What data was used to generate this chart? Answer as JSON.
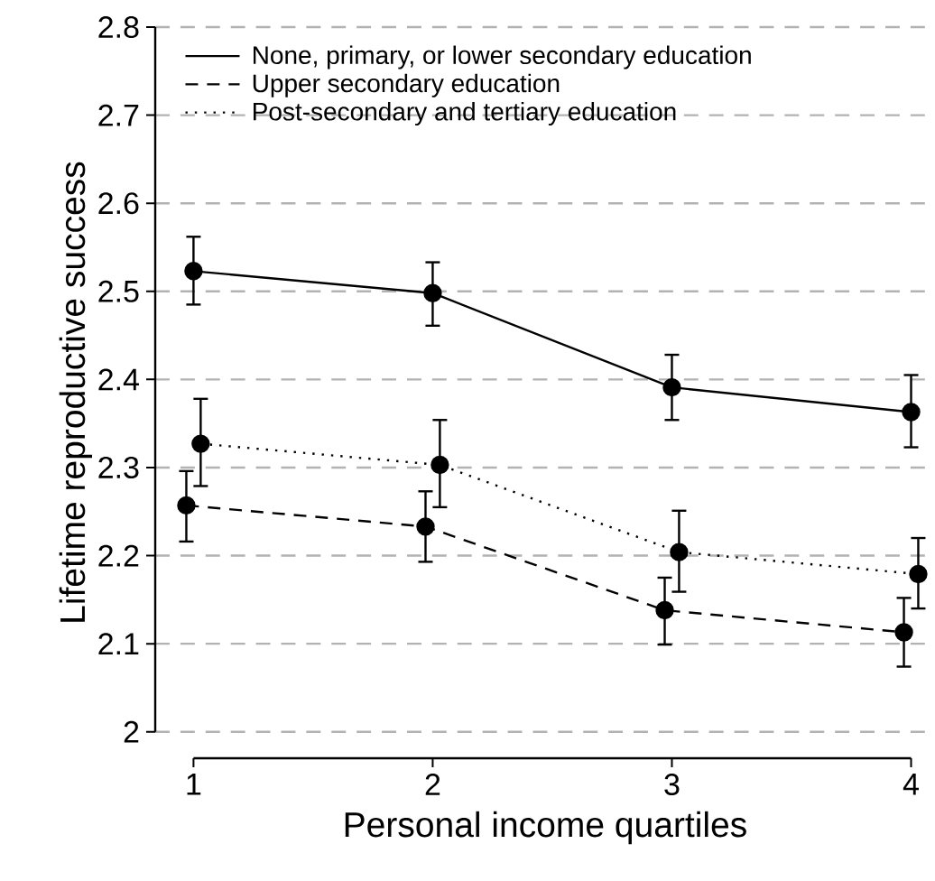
{
  "chart_data": {
    "type": "line",
    "xlabel": "Personal income quartiles",
    "ylabel": "Lifetime reproductive success",
    "xlim": [
      0.84,
      4.1
    ],
    "ylim": [
      1.97,
      2.8
    ],
    "xticks": [
      1,
      2,
      3,
      4
    ],
    "yticks": [
      2,
      2.1,
      2.2,
      2.3,
      2.4,
      2.5,
      2.6,
      2.7,
      2.8
    ],
    "grid": "y",
    "legend": "top left",
    "marker": "circle",
    "series": [
      {
        "name": "None, primary, or lower secondary education",
        "color": "#000000",
        "line_style": "solid",
        "x": [
          1,
          2,
          3,
          4
        ],
        "values": [
          2.523,
          2.498,
          2.391,
          2.363
        ],
        "errors": [
          [
            2.485,
            2.562
          ],
          [
            2.461,
            2.533
          ],
          [
            2.354,
            2.428
          ],
          [
            2.323,
            2.405
          ]
        ]
      },
      {
        "name": "Upper secondary education",
        "color": "#000000",
        "line_style": "dashed",
        "x": [
          0.97,
          1.97,
          2.97,
          3.97
        ],
        "values": [
          2.257,
          2.233,
          2.138,
          2.113
        ],
        "errors": [
          [
            2.216,
            2.296
          ],
          [
            2.193,
            2.273
          ],
          [
            2.099,
            2.175
          ],
          [
            2.074,
            2.152
          ]
        ]
      },
      {
        "name": "Post-secondary and tertiary education",
        "color": "#000000",
        "line_style": "dotted",
        "x": [
          1.03,
          2.03,
          3.03,
          4.03
        ],
        "values": [
          2.327,
          2.303,
          2.204,
          2.179
        ],
        "errors": [
          [
            2.279,
            2.378
          ],
          [
            2.255,
            2.354
          ],
          [
            2.159,
            2.251
          ],
          [
            2.14,
            2.22
          ]
        ]
      }
    ]
  }
}
